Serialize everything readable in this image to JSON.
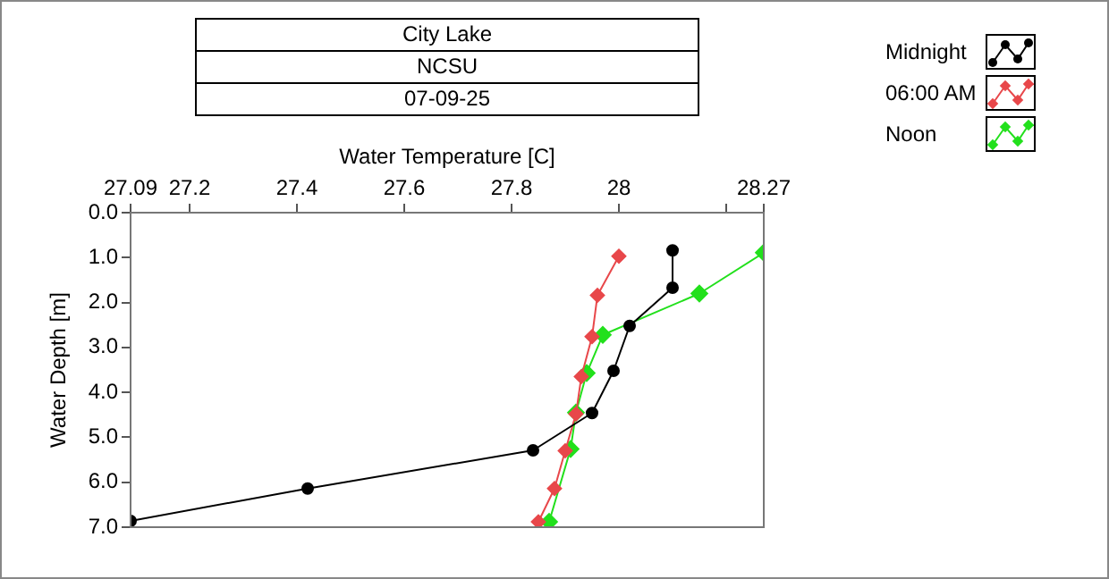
{
  "chart_data": {
    "type": "line",
    "title": "City Lake",
    "subtitle": "NCSU",
    "annotations": [
      "07-09-25"
    ],
    "xlabel": "Water Temperature [C]",
    "ylabel": "Water Depth [m]",
    "xlim": [
      27.09,
      28.27
    ],
    "xticks": [
      27.09,
      27.2,
      27.4,
      27.6,
      27.8,
      28,
      {
        "value": 28.2,
        "label": null
      },
      28.27
    ],
    "ylim": [
      7,
      0
    ],
    "yticks": [
      {
        "value": 0,
        "label": "0.0"
      },
      {
        "value": 1,
        "label": "1.0"
      },
      {
        "value": 2,
        "label": "2.0"
      },
      {
        "value": 3,
        "label": "3.0"
      },
      {
        "value": 4,
        "label": "4.0"
      },
      {
        "value": 5,
        "label": "5.0"
      },
      {
        "value": 6,
        "label": "6.0"
      },
      {
        "value": 7,
        "label": "7.0"
      }
    ],
    "grid": false,
    "legend": "top right",
    "marker": "circle",
    "line_style": "solid",
    "series": [
      {
        "name": "Midnight",
        "color": "#000000",
        "x": [
          28.1,
          28.1,
          28.02,
          27.99,
          27.95,
          27.84,
          27.42,
          27.09
        ],
        "values": [
          0.84,
          1.67,
          2.52,
          3.52,
          4.46,
          5.29,
          6.14,
          6.86
        ]
      },
      {
        "name": "06:00 AM",
        "color": "#e8474a",
        "marker": "diamond",
        "x": [
          28.0,
          27.96,
          27.95,
          27.93,
          27.92,
          27.9,
          27.88,
          27.85
        ],
        "values": [
          0.97,
          1.84,
          2.76,
          3.65,
          4.48,
          5.3,
          6.14,
          6.88
        ]
      },
      {
        "name": "Noon",
        "color": "#22e01c",
        "marker": "diamond",
        "x": [
          28.27,
          28.15,
          27.97,
          27.94,
          27.92,
          27.91,
          27.87
        ],
        "values": [
          0.89,
          1.8,
          2.72,
          3.57,
          4.45,
          5.26,
          6.88
        ]
      }
    ]
  }
}
